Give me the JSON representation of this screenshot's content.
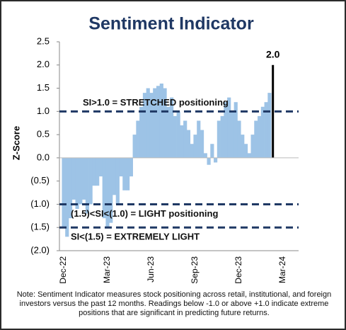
{
  "chart_data": {
    "type": "bar",
    "title": "Sentiment Indicator",
    "y_label": "Z-Score",
    "note": "Note: Sentiment Indicator measures stock positioning across retail, institutional, and foreign investors versus the past 12 months. Readings below -1.0 or above +1.0 indicate extreme positions that are significant in predicting future returns.",
    "categories": [
      "Dec-22",
      null,
      null,
      null,
      null,
      null,
      null,
      null,
      null,
      null,
      null,
      null,
      null,
      "Mar-23",
      null,
      null,
      null,
      null,
      null,
      null,
      null,
      null,
      null,
      null,
      null,
      null,
      "Jun-23",
      null,
      null,
      null,
      null,
      null,
      null,
      null,
      null,
      null,
      null,
      null,
      null,
      "Sep-23",
      null,
      null,
      null,
      null,
      null,
      null,
      null,
      null,
      null,
      null,
      null,
      null,
      "Dec-23",
      null,
      null,
      null,
      null,
      null,
      null,
      null,
      null,
      null,
      null,
      null,
      null,
      "Mar-24"
    ],
    "values": [
      -1.5,
      -1.7,
      -1.3,
      -0.9,
      -1.1,
      -1.0,
      -0.9,
      -1.2,
      -1.0,
      -0.6,
      -0.6,
      -0.4,
      -1.3,
      -1.5,
      -1.4,
      -0.8,
      -1.0,
      -0.4,
      -0.7,
      -0.7,
      -0.4,
      0.5,
      0.8,
      1.1,
      1.4,
      1.5,
      1.4,
      1.5,
      1.55,
      1.6,
      1.5,
      1.1,
      1.3,
      0.9,
      1.0,
      0.7,
      0.8,
      0.6,
      0.3,
      0.5,
      0.8,
      0.6,
      0.1,
      -0.15,
      0.3,
      -0.1,
      0.8,
      0.9,
      1.2,
      1.3,
      1.0,
      1.2,
      0.8,
      0.5,
      0.3,
      0.1,
      0.5,
      0.8,
      0.9,
      1.1,
      1.2,
      1.4,
      2.0,
      null,
      null,
      null
    ],
    "value_labels": [
      null,
      null,
      null,
      null,
      null,
      null,
      null,
      null,
      null,
      null,
      null,
      null,
      null,
      null,
      null,
      null,
      null,
      null,
      null,
      null,
      null,
      null,
      null,
      null,
      null,
      null,
      null,
      null,
      null,
      null,
      null,
      null,
      null,
      null,
      null,
      null,
      null,
      null,
      null,
      null,
      null,
      null,
      null,
      null,
      null,
      null,
      null,
      null,
      null,
      null,
      null,
      null,
      null,
      null,
      null,
      null,
      null,
      null,
      null,
      null,
      null,
      null,
      "2.0",
      null,
      null,
      null
    ],
    "color": "#9dc3e6",
    "highlight_color": "#000000",
    "highlight_index": 62,
    "ylim": [
      -2.0,
      2.5
    ],
    "yticks": [
      {
        "value": -2.0,
        "label": "(2.0)"
      },
      {
        "value": -1.5,
        "label": "(1.5)"
      },
      {
        "value": -1.0,
        "label": "(1.0)"
      },
      {
        "value": -0.5,
        "label": "(0.5)"
      },
      {
        "value": 0,
        "label": "0.0"
      },
      0.5,
      {
        "value": 1.0,
        "label": "1.0"
      },
      1.5,
      {
        "value": 2.0,
        "label": "2.0"
      },
      2.5
    ],
    "reference_lines": [
      {
        "value": 1.0,
        "label": "SI>1.0 = STRETCHED positioning"
      },
      {
        "value": -1.0,
        "label": "(1.5)<SI<(1.0) = LIGHT positioning"
      },
      {
        "value": -1.5,
        "label": "SI<(1.5) = EXTREMELY LIGHT"
      }
    ],
    "reference_color": "#1f3864",
    "title_color": "#1f3864"
  }
}
